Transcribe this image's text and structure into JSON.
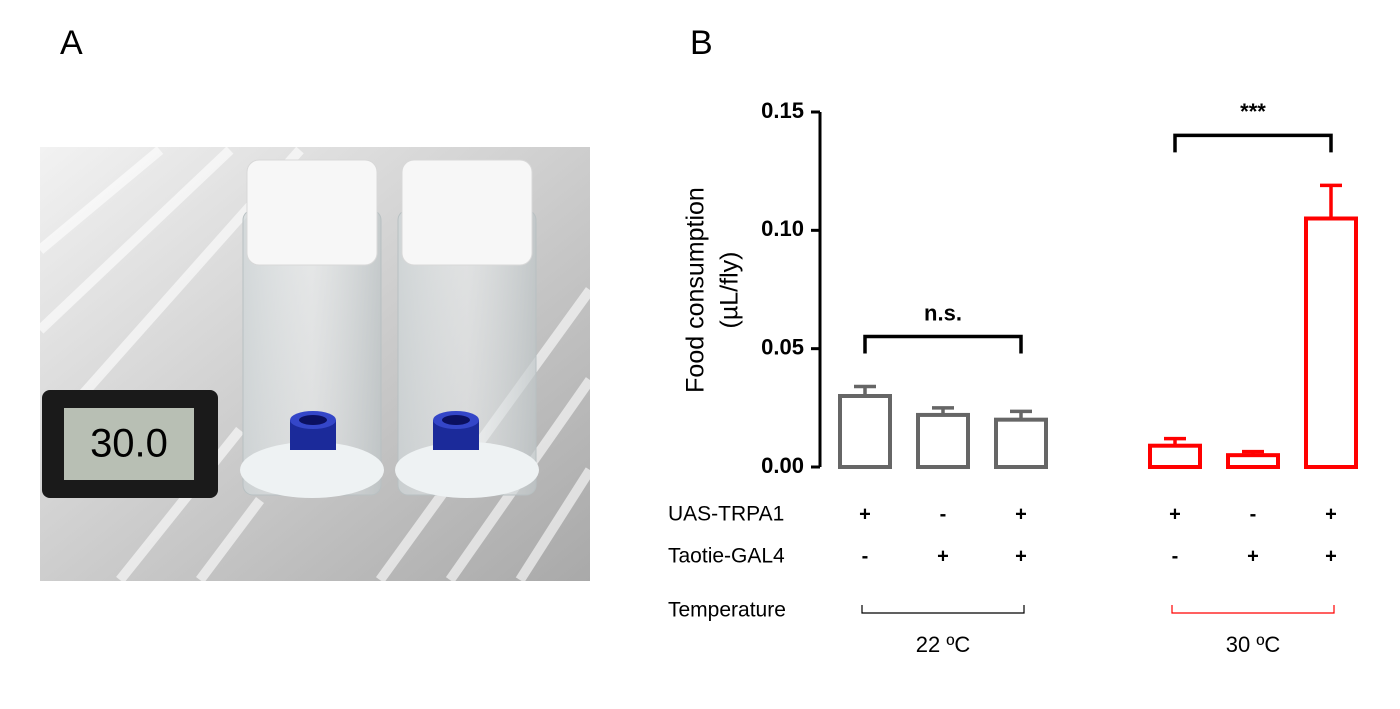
{
  "panel_a": {
    "label": "A",
    "display": "30.0"
  },
  "chart_data": {
    "type": "bar",
    "panel_label": "B",
    "ylabel": [
      "Food consumption",
      "(µL/fly)"
    ],
    "ylim": [
      0,
      0.15
    ],
    "yticks": [
      {
        "value": 0,
        "label": "0.00"
      },
      0.05,
      {
        "value": 0.1,
        "label": "0.10"
      },
      0.15
    ],
    "series": [
      {
        "name": "22 ºC",
        "color": "#666666",
        "values": [
          0.03,
          0.022,
          0.02
        ],
        "errors": [
          0.004,
          0.003,
          0.0035
        ],
        "annotation": "n.s."
      },
      {
        "name": "30 ºC",
        "color": "#ff0000",
        "values": [
          0.009,
          0.005,
          0.105
        ],
        "errors": [
          0.003,
          0.0015,
          0.014
        ],
        "annotation": "***"
      }
    ],
    "genotype_rows": [
      {
        "label": "UAS-TRPA1",
        "values": [
          "+",
          "-",
          "+",
          "+",
          "-",
          "+"
        ]
      },
      {
        "label": "Taotie-GAL4",
        "values": [
          "-",
          "+",
          "+",
          "-",
          "+",
          "+"
        ]
      }
    ],
    "temperature_label": "Temperature"
  }
}
